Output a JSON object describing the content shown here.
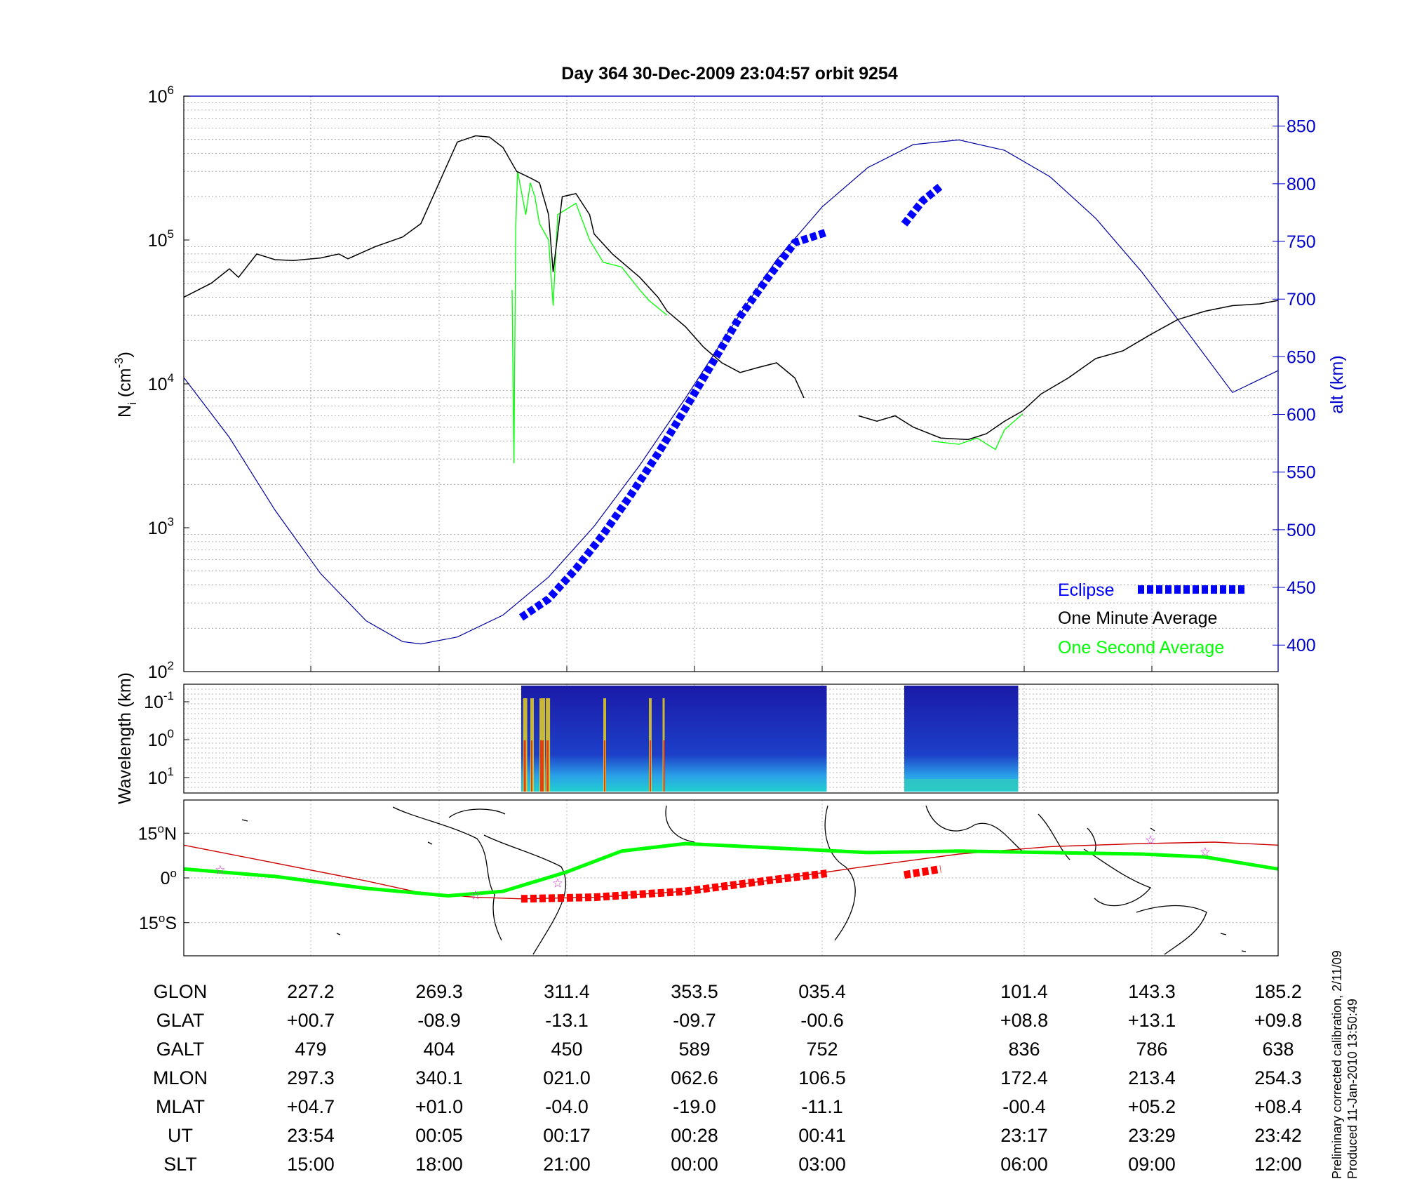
{
  "chart_data": [
    {
      "type": "line",
      "title": "Day 364  30-Dec-2009 23:04:57   orbit 9254",
      "ylabel_left": "N",
      "ylabel_left_sub": "i",
      "ylabel_left_unit": "(cm",
      "ylabel_left_unit_sup": "-3",
      "ylabel_left_unit_close": ")",
      "y_left_scale": "log",
      "y_left_ticks": [
        {
          "base": "10",
          "exp": "2"
        },
        {
          "base": "10",
          "exp": "3"
        },
        {
          "base": "10",
          "exp": "4"
        },
        {
          "base": "10",
          "exp": "5"
        },
        {
          "base": "10",
          "exp": "6"
        }
      ],
      "y_left_range": [
        100,
        1000000
      ],
      "ylabel_right": "alt (km)",
      "y_right_ticks": [
        "400",
        "450",
        "500",
        "550",
        "600",
        "650",
        "700",
        "750",
        "800",
        "850"
      ],
      "y_right_range": [
        377,
        876
      ],
      "grid": true,
      "legend_position": "bottom-right",
      "legend": [
        {
          "label": "Eclipse",
          "color": "#0000ff"
        },
        {
          "label": "One Minute Average",
          "color": "#000000"
        },
        {
          "label": "One Second Average",
          "color": "#00ff00"
        }
      ],
      "x_ticks_ut": [
        "23:54",
        "00:05",
        "00:17",
        "00:28",
        "00:41",
        "23:17",
        "23:29",
        "23:42"
      ],
      "series": [
        {
          "name": "One Minute Average",
          "axis": "left",
          "segments": [
            [
              [
                0.0,
                40000
              ],
              [
                0.3,
                50000
              ],
              [
                0.5,
                63000
              ],
              [
                0.6,
                55000
              ],
              [
                0.8,
                80000
              ],
              [
                1.0,
                73000
              ],
              [
                1.2,
                72000
              ],
              [
                1.5,
                75000
              ],
              [
                1.7,
                80000
              ],
              [
                1.8,
                74000
              ],
              [
                2.1,
                90000
              ],
              [
                2.4,
                105000
              ],
              [
                2.6,
                130000
              ],
              [
                2.8,
                250000
              ],
              [
                3.0,
                480000
              ],
              [
                3.2,
                530000
              ],
              [
                3.35,
                520000
              ],
              [
                3.5,
                440000
              ],
              [
                3.65,
                300000
              ],
              [
                3.8,
                270000
              ],
              [
                3.9,
                250000
              ],
              [
                4.0,
                150000
              ],
              [
                4.05,
                60000
              ],
              [
                4.15,
                200000
              ],
              [
                4.3,
                210000
              ],
              [
                4.45,
                150000
              ],
              [
                4.5,
                110000
              ],
              [
                4.7,
                80000
              ],
              [
                5.0,
                55000
              ],
              [
                5.2,
                40000
              ],
              [
                5.3,
                32000
              ],
              [
                5.5,
                25000
              ],
              [
                5.7,
                18000
              ],
              [
                5.9,
                14000
              ],
              [
                6.1,
                12000
              ],
              [
                6.3,
                13000
              ],
              [
                6.5,
                14000
              ],
              [
                6.7,
                11000
              ],
              [
                6.8,
                8000
              ]
            ],
            [
              [
                7.4,
                6000
              ],
              [
                7.6,
                5500
              ],
              [
                7.8,
                6000
              ],
              [
                8.0,
                5000
              ],
              [
                8.3,
                4200
              ],
              [
                8.6,
                4100
              ],
              [
                8.8,
                4500
              ],
              [
                9.0,
                5500
              ],
              [
                9.2,
                6500
              ],
              [
                9.4,
                8500
              ],
              [
                9.7,
                11000
              ],
              [
                10.0,
                15000
              ],
              [
                10.3,
                17000
              ],
              [
                10.6,
                22000
              ],
              [
                10.9,
                28000
              ],
              [
                11.2,
                32000
              ],
              [
                11.5,
                35000
              ],
              [
                11.8,
                36000
              ],
              [
                12.0,
                38000
              ]
            ]
          ]
        },
        {
          "name": "One Second Average",
          "axis": "left",
          "segments": [
            [
              [
                3.6,
                45000
              ],
              [
                3.62,
                2800
              ],
              [
                3.64,
                120000
              ],
              [
                3.66,
                300000
              ],
              [
                3.75,
                150000
              ],
              [
                3.8,
                250000
              ],
              [
                3.85,
                200000
              ],
              [
                3.9,
                130000
              ],
              [
                4.0,
                100000
              ],
              [
                4.05,
                35000
              ],
              [
                4.1,
                150000
              ],
              [
                4.3,
                180000
              ],
              [
                4.45,
                100000
              ],
              [
                4.6,
                70000
              ],
              [
                4.8,
                65000
              ],
              [
                5.0,
                45000
              ],
              [
                5.1,
                38000
              ],
              [
                5.3,
                30000
              ]
            ],
            [
              [
                8.2,
                4000
              ],
              [
                8.5,
                3800
              ],
              [
                8.7,
                4200
              ],
              [
                8.9,
                3500
              ],
              [
                9.0,
                4800
              ],
              [
                9.2,
                6200
              ]
            ]
          ]
        },
        {
          "name": "alt",
          "axis": "right",
          "segments": [
            [
              [
                0.0,
                632
              ],
              [
                0.5,
                580
              ],
              [
                1.0,
                517
              ],
              [
                1.5,
                462
              ],
              [
                2.0,
                421
              ],
              [
                2.4,
                403
              ],
              [
                2.6,
                401
              ],
              [
                3.0,
                407
              ],
              [
                3.5,
                426
              ],
              [
                4.0,
                459
              ],
              [
                4.5,
                503
              ],
              [
                5.0,
                556
              ],
              [
                5.5,
                614
              ],
              [
                6.0,
                675
              ],
              [
                6.5,
                734
              ],
              [
                7.0,
                780
              ],
              [
                7.5,
                814
              ],
              [
                8.0,
                834
              ],
              [
                8.5,
                838
              ],
              [
                9.0,
                829
              ],
              [
                9.5,
                806
              ],
              [
                10.0,
                770
              ],
              [
                10.5,
                724
              ],
              [
                11.0,
                672
              ],
              [
                11.5,
                619
              ],
              [
                12.0,
                638
              ]
            ]
          ]
        },
        {
          "name": "Eclipse",
          "axis": "right",
          "segments": [
            [
              [
                3.7,
                424
              ],
              [
                4.0,
                440
              ],
              [
                4.3,
                466
              ],
              [
                4.6,
                496
              ],
              [
                4.9,
                530
              ],
              [
                5.2,
                566
              ],
              [
                5.5,
                605
              ],
              [
                5.8,
                645
              ],
              [
                6.1,
                685
              ],
              [
                6.4,
                718
              ],
              [
                6.7,
                749
              ],
              [
                7.05,
                758
              ]
            ],
            [
              [
                7.9,
                765
              ],
              [
                8.1,
                785
              ],
              [
                8.3,
                798
              ]
            ]
          ]
        }
      ]
    },
    {
      "type": "heatmap",
      "ylabel": "Wavelength (km)",
      "y_ticks": [
        {
          "base": "10",
          "exp": "-1"
        },
        {
          "base": "10",
          "exp": "0"
        },
        {
          "base": "10",
          "exp": "1"
        }
      ],
      "blocks": [
        {
          "x_start": 3.7,
          "x_end": 7.05
        },
        {
          "x_start": 7.9,
          "x_end": 9.15
        }
      ]
    },
    {
      "type": "line",
      "name": "ground track map",
      "y_ticks": [
        {
          "value": "15",
          "unit": "N"
        },
        {
          "value": "0",
          "unit": ""
        },
        {
          "value": "15",
          "unit": "S"
        }
      ],
      "tracks": [
        {
          "name": "magnetic equator",
          "color": "#00ff00",
          "points": [
            [
              0,
              3
            ],
            [
              1,
              0.5
            ],
            [
              2,
              -3.5
            ],
            [
              2.9,
              -6
            ],
            [
              3.5,
              -4.5
            ],
            [
              4.2,
              2
            ],
            [
              4.8,
              9
            ],
            [
              5.5,
              11.5
            ],
            [
              6.5,
              10
            ],
            [
              7.5,
              8.5
            ],
            [
              8.5,
              9
            ],
            [
              9.5,
              8.5
            ],
            [
              10.5,
              8
            ],
            [
              11.2,
              7
            ],
            [
              12,
              3
            ]
          ]
        },
        {
          "name": "orbit",
          "color": "#cc0000",
          "points": [
            [
              0,
              11
            ],
            [
              1,
              5
            ],
            [
              2,
              -1
            ],
            [
              2.6,
              -5
            ],
            [
              3.2,
              -6.5
            ],
            [
              3.7,
              -7
            ],
            [
              4.5,
              -6.5
            ],
            [
              5.5,
              -4.5
            ],
            [
              6.5,
              -0.5
            ],
            [
              7.4,
              3.5
            ],
            [
              8.5,
              8
            ],
            [
              9.5,
              10.5
            ],
            [
              10.5,
              11.5
            ],
            [
              11.3,
              12
            ],
            [
              12,
              11
            ]
          ]
        },
        {
          "name": "eclipse",
          "color": "#ff0000",
          "points": [
            [
              3.7,
              -7
            ],
            [
              4.5,
              -6.5
            ],
            [
              5.5,
              -4.5
            ],
            [
              6.5,
              -0.5
            ],
            [
              7.05,
              1.5
            ]
          ],
          "points2": [
            [
              7.9,
              1
            ],
            [
              8.3,
              3
            ]
          ]
        }
      ],
      "stars": [
        [
          0.4,
          3
        ],
        [
          3.2,
          -5.5
        ],
        [
          4.1,
          -1.5
        ],
        [
          10.6,
          13
        ],
        [
          11.2,
          9
        ]
      ]
    }
  ],
  "table": {
    "row_labels": [
      "GLON",
      "GLAT",
      "GALT",
      "MLON",
      "MLAT",
      "UT",
      "SLT"
    ],
    "columns": [
      [
        "227.2",
        "+00.7",
        "479",
        "297.3",
        "+04.7",
        "23:54",
        "15:00"
      ],
      [
        "269.3",
        "-08.9",
        "404",
        "340.1",
        "+01.0",
        "00:05",
        "18:00"
      ],
      [
        "311.4",
        "-13.1",
        "450",
        "021.0",
        "-04.0",
        "00:17",
        "21:00"
      ],
      [
        "353.5",
        "-09.7",
        "589",
        "062.6",
        "-19.0",
        "00:28",
        "00:00"
      ],
      [
        "035.4",
        "-00.6",
        "752",
        "106.5",
        "-11.1",
        "00:41",
        "03:00"
      ],
      [
        "101.4",
        "+08.8",
        "836",
        "172.4",
        "-00.4",
        "23:17",
        "06:00"
      ],
      [
        "143.3",
        "+13.1",
        "786",
        "213.4",
        "+05.2",
        "23:29",
        "09:00"
      ],
      [
        "185.2",
        "+09.8",
        "638",
        "254.3",
        "+08.4",
        "23:42",
        "12:00"
      ]
    ]
  },
  "footnote": {
    "line1": "Preliminary corrected calibration, 2/11/09",
    "line2": "Produced 11-Jan-2010 13:50:49"
  },
  "colors": {
    "minute": "#000000",
    "second": "#00ff00",
    "alt": "#0000a0",
    "eclipse": "#0000ff",
    "eclipse_map": "#ff0000",
    "track": "#00ff00",
    "orbit": "#cc0000",
    "star": "#cc33cc",
    "axis_right": "#0000cc",
    "spectrogram_bg": "#1a1aa0"
  }
}
